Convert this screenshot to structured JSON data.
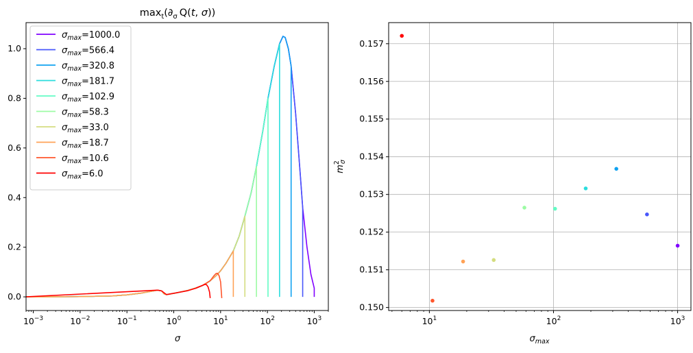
{
  "chart_data": [
    {
      "type": "line",
      "title": "max_t(∂_σ Q(t,σ))",
      "xlabel": "σ",
      "ylabel": "",
      "xscale": "log",
      "xlim": [
        0.0007,
        2000
      ],
      "ylim": [
        -0.055,
        1.105
      ],
      "x_ticks": [
        {
          "value": 0.001,
          "base": "10",
          "exp": "−3"
        },
        {
          "value": 0.01,
          "base": "10",
          "exp": "−2"
        },
        {
          "value": 0.1,
          "base": "10",
          "exp": "−1"
        },
        {
          "value": 1,
          "base": "10",
          "exp": "0"
        },
        {
          "value": 10,
          "base": "10",
          "exp": "1"
        },
        {
          "value": 100,
          "base": "10",
          "exp": "2"
        },
        {
          "value": 1000,
          "base": "10",
          "exp": "3"
        }
      ],
      "y_ticks": [
        {
          "value": 0.0,
          "label": "0.0"
        },
        {
          "value": 0.2,
          "label": "0.2"
        },
        {
          "value": 0.4,
          "label": "0.4"
        },
        {
          "value": 0.6,
          "label": "0.6"
        },
        {
          "value": 0.8,
          "label": "0.8"
        },
        {
          "value": 1.0,
          "label": "1.0"
        }
      ],
      "grid": false,
      "legend_position": "top-left",
      "legend_symbol": "σ",
      "legend_subscript": "max",
      "series": [
        {
          "name": "1000.0",
          "sigma_max": 1000.0,
          "color": "#8000ff"
        },
        {
          "name": "566.4",
          "sigma_max": 566.4,
          "color": "#4856fb"
        },
        {
          "name": "320.8",
          "sigma_max": 320.8,
          "color": "#10a2f0"
        },
        {
          "name": "181.7",
          "sigma_max": 181.7,
          "color": "#2adddd"
        },
        {
          "name": "102.9",
          "sigma_max": 102.9,
          "color": "#62fbc4"
        },
        {
          "name": "58.3",
          "sigma_max": 58.3,
          "color": "#9cfba4"
        },
        {
          "name": "33.0",
          "sigma_max": 33.0,
          "color": "#d4dd80"
        },
        {
          "name": "18.7",
          "sigma_max": 18.7,
          "color": "#ffa256"
        },
        {
          "name": "10.6",
          "sigma_max": 10.6,
          "color": "#ff562c"
        },
        {
          "name": "6.0",
          "sigma_max": 6.0,
          "color": "#ff0000"
        }
      ],
      "shared_curve": {
        "x": [
          0.0007,
          0.001,
          0.01,
          0.05,
          0.1,
          0.2,
          0.3,
          0.45,
          0.55,
          0.62,
          0.7,
          1.0,
          1.5,
          2.0,
          3.0,
          4.0,
          5.0,
          6.0,
          8.0,
          10.0,
          13.0,
          18.7,
          25.0,
          33.0,
          45.0,
          58.3,
          80.0,
          102.9,
          140.0,
          181.7,
          215.0,
          240.0,
          280.0,
          320.8,
          400.0,
          500.0,
          566.4,
          700.0,
          850.0,
          1000.0
        ],
        "y": [
          0.0,
          0.0,
          0.001,
          0.004,
          0.008,
          0.015,
          0.021,
          0.027,
          0.024,
          0.012,
          0.009,
          0.014,
          0.021,
          0.026,
          0.036,
          0.045,
          0.055,
          0.065,
          0.085,
          0.105,
          0.135,
          0.185,
          0.245,
          0.325,
          0.42,
          0.525,
          0.67,
          0.8,
          0.93,
          1.02,
          1.05,
          1.045,
          1.0,
          0.93,
          0.74,
          0.5,
          0.36,
          0.2,
          0.09,
          0.035
        ]
      },
      "truncated_bumps": [
        {
          "series": "6.0",
          "x": [
            0.0007,
            0.45,
            0.55,
            0.7,
            2.0,
            3.0,
            4.0,
            4.6,
            5.0,
            5.4,
            5.8,
            6.0
          ],
          "y": [
            0.0,
            0.027,
            0.024,
            0.009,
            0.025,
            0.035,
            0.045,
            0.05,
            0.049,
            0.04,
            0.02,
            -0.005
          ]
        },
        {
          "series": "10.6",
          "x": [
            3.0,
            4.0,
            6.0,
            7.2,
            8.0,
            8.6,
            9.3,
            10.0,
            10.6
          ],
          "y": [
            0.036,
            0.045,
            0.065,
            0.085,
            0.094,
            0.095,
            0.085,
            0.06,
            -0.005
          ]
        }
      ]
    },
    {
      "type": "scatter",
      "title": "",
      "xlabel": "σ_max",
      "ylabel": "m²_σ",
      "xscale": "log",
      "xlim": [
        4.7,
        1280
      ],
      "ylim": [
        0.14992,
        0.15756
      ],
      "x_ticks": [
        {
          "value": 10,
          "base": "10",
          "exp": "1"
        },
        {
          "value": 100,
          "base": "10",
          "exp": "2"
        },
        {
          "value": 1000,
          "base": "10",
          "exp": "3"
        }
      ],
      "y_ticks": [
        {
          "value": 0.15,
          "label": "0.150"
        },
        {
          "value": 0.151,
          "label": "0.151"
        },
        {
          "value": 0.152,
          "label": "0.152"
        },
        {
          "value": 0.153,
          "label": "0.153"
        },
        {
          "value": 0.154,
          "label": "0.154"
        },
        {
          "value": 0.155,
          "label": "0.155"
        },
        {
          "value": 0.156,
          "label": "0.156"
        },
        {
          "value": 0.157,
          "label": "0.157"
        }
      ],
      "grid": true,
      "points": [
        {
          "x": 6.0,
          "y": 0.15721,
          "color": "#ff0000"
        },
        {
          "x": 10.6,
          "y": 0.15018,
          "color": "#ff562c"
        },
        {
          "x": 18.7,
          "y": 0.15122,
          "color": "#ffa256"
        },
        {
          "x": 33.0,
          "y": 0.15126,
          "color": "#d4dd80"
        },
        {
          "x": 58.3,
          "y": 0.15265,
          "color": "#9cfba4"
        },
        {
          "x": 102.9,
          "y": 0.15262,
          "color": "#62fbc4"
        },
        {
          "x": 181.7,
          "y": 0.15316,
          "color": "#2adddd"
        },
        {
          "x": 320.8,
          "y": 0.15368,
          "color": "#10a2f0"
        },
        {
          "x": 566.4,
          "y": 0.15247,
          "color": "#4856fb"
        },
        {
          "x": 1000.0,
          "y": 0.15164,
          "color": "#8000ff"
        }
      ]
    }
  ]
}
